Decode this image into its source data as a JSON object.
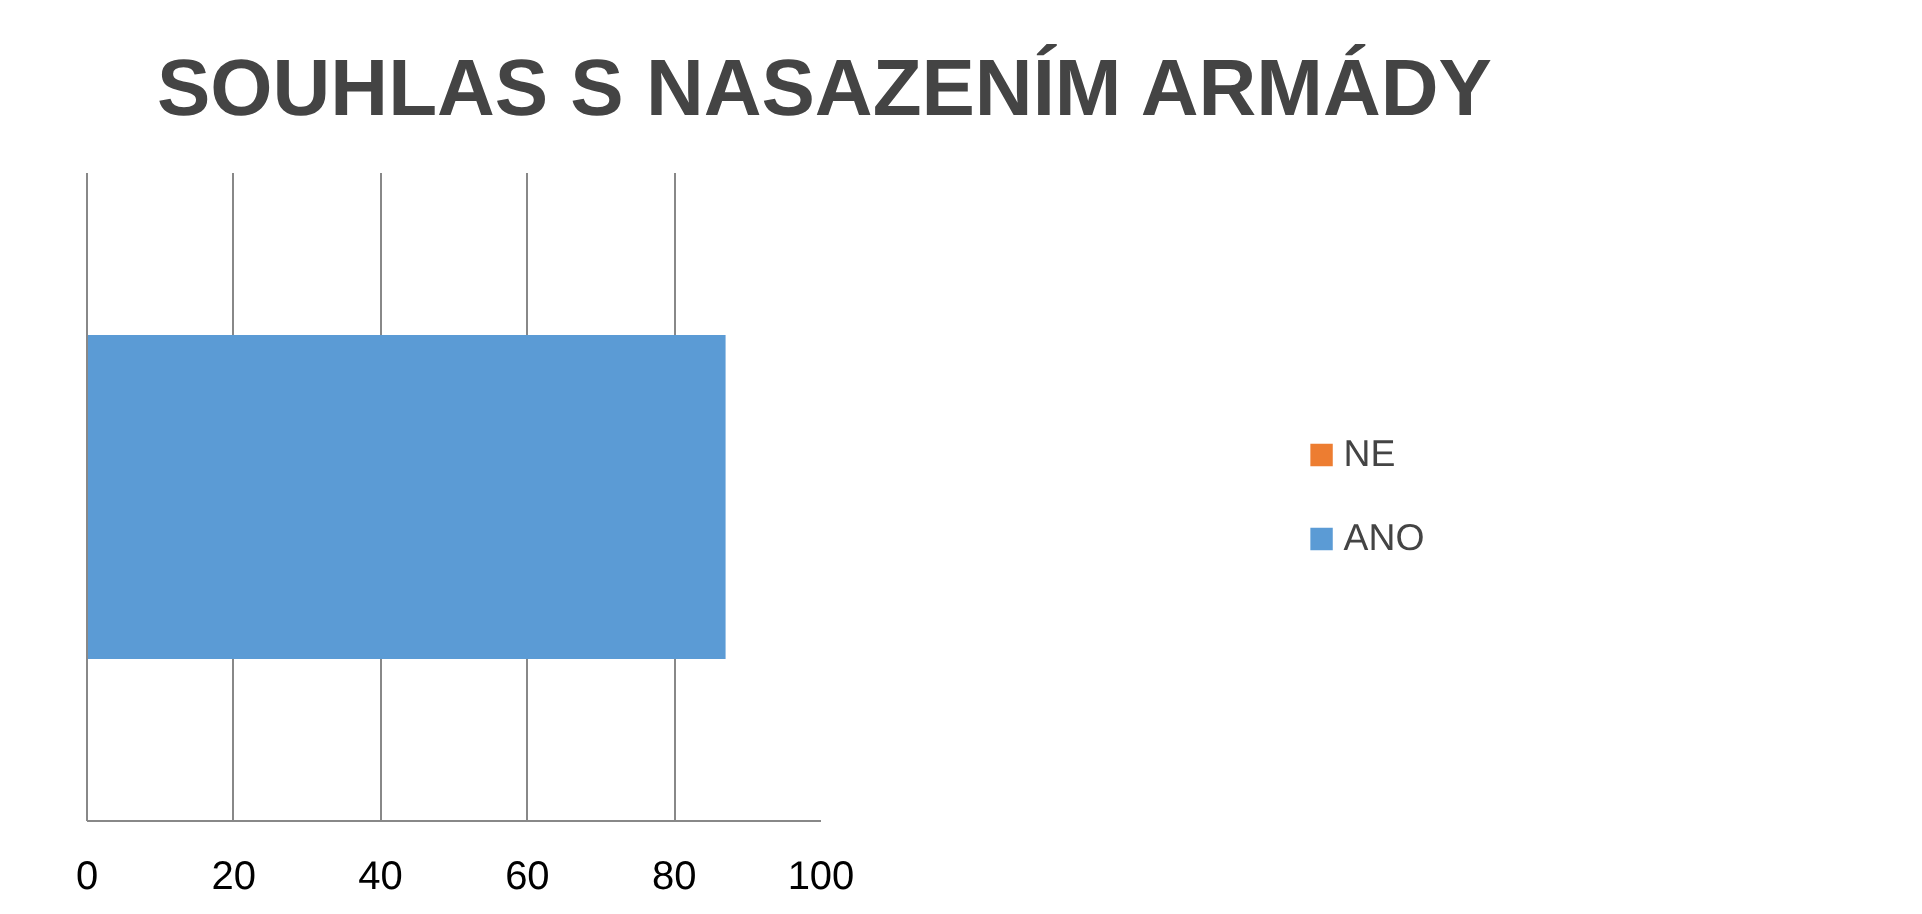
{
  "chart_data": {
    "type": "bar",
    "title": "SOUHLAS S NASAZENÍM ARMÁDY",
    "orientation": "horizontal",
    "stacked": true,
    "categories": [
      null
    ],
    "series": [
      {
        "name": "ANO",
        "color": "#5b9bd5",
        "values": [
          87
        ]
      },
      {
        "name": "NE",
        "color": "#ed7d31",
        "values": [
          null
        ]
      }
    ],
    "xlim": [
      0,
      100
    ],
    "xticks": [
      0,
      20,
      40,
      60,
      80,
      100
    ],
    "grid": "x",
    "legend": "right"
  }
}
